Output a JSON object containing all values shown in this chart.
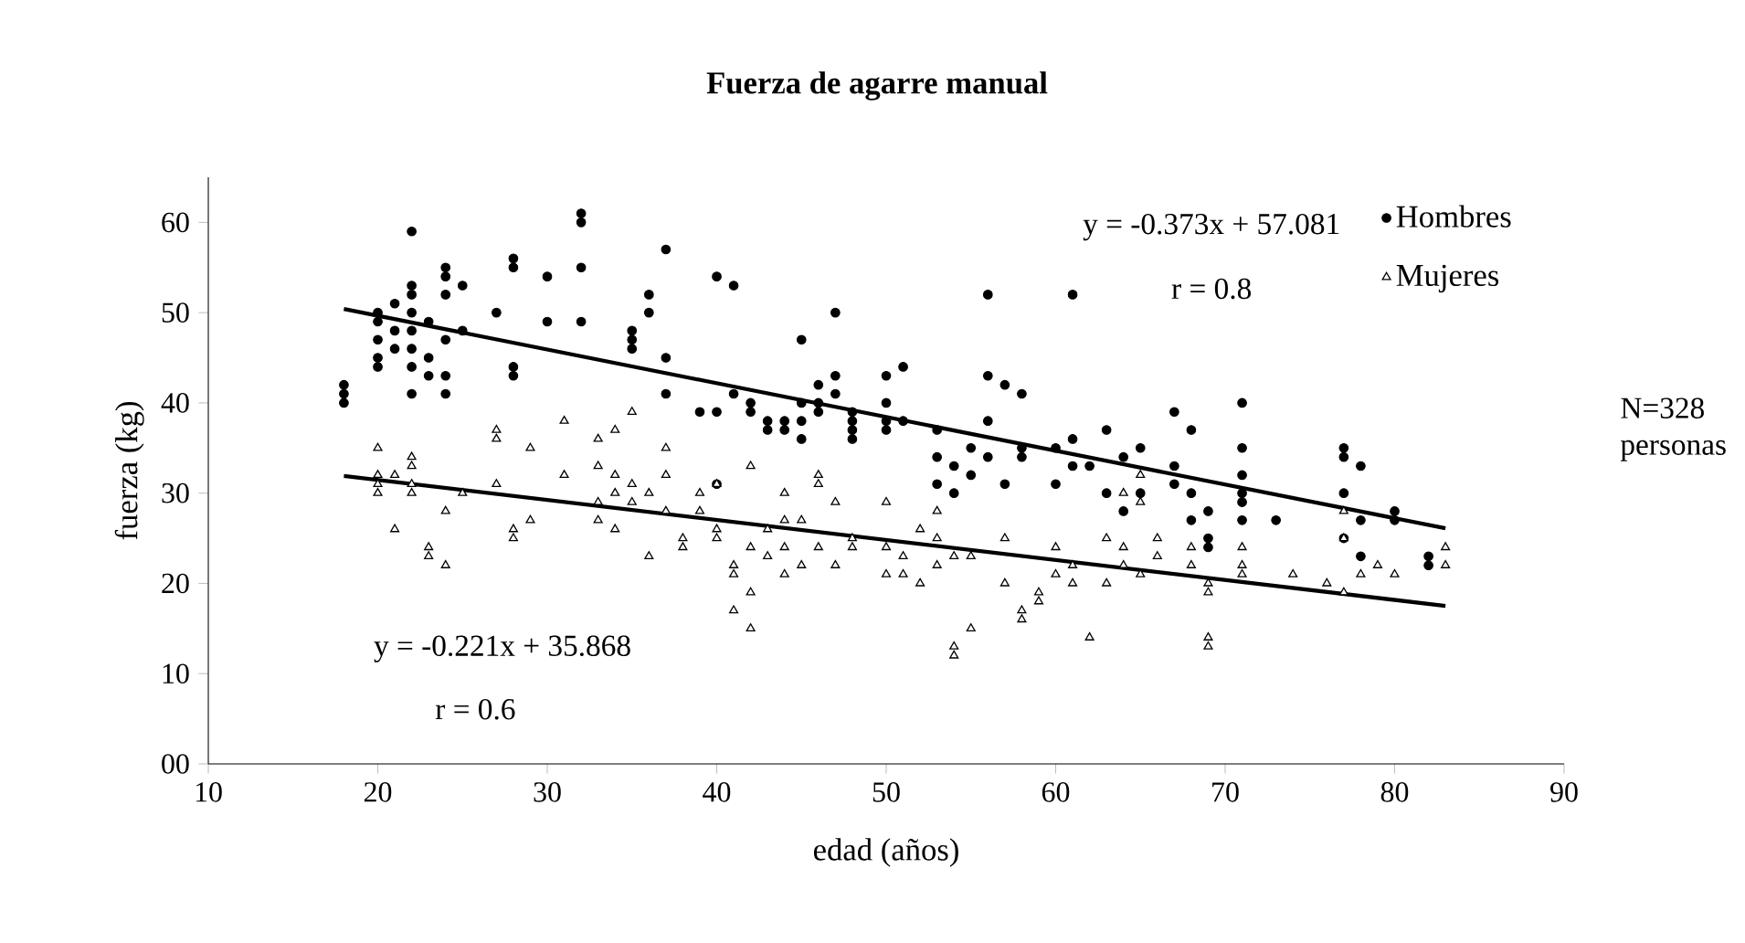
{
  "chart_data": {
    "type": "scatter",
    "title": "Fuerza de agarre manual",
    "xlabel": "edad (años)",
    "ylabel": "fuerza (kg)",
    "xlim": [
      10,
      90
    ],
    "ylim": [
      0,
      65
    ],
    "xticks": [
      10,
      20,
      30,
      40,
      50,
      60,
      70,
      80,
      90
    ],
    "yticks": [
      {
        "value": 0,
        "label": "00"
      },
      10,
      20,
      30,
      40,
      50,
      60
    ],
    "grid": false,
    "legend": "top right",
    "annotations": [
      "y = -0.373x + 57.081",
      "r = 0.8",
      "y = -0.221x + 35.868",
      "r = 0.6",
      "N=328 personas"
    ],
    "series": [
      {
        "name": "Hombres",
        "color": "#000000",
        "marker": "circle",
        "x": [
          18,
          18,
          18,
          20,
          20,
          20,
          20,
          20,
          21,
          21,
          21,
          22,
          22,
          22,
          22,
          22,
          22,
          22,
          22,
          23,
          23,
          23,
          24,
          24,
          24,
          24,
          24,
          24,
          25,
          25,
          27,
          28,
          28,
          28,
          28,
          30,
          30,
          32,
          32,
          32,
          32,
          35,
          35,
          35,
          36,
          36,
          37,
          37,
          37,
          39,
          40,
          40,
          40,
          41,
          41,
          42,
          42,
          43,
          43,
          44,
          44,
          45,
          45,
          45,
          45,
          46,
          46,
          46,
          47,
          47,
          47,
          48,
          48,
          48,
          48,
          50,
          50,
          50,
          50,
          51,
          51,
          53,
          53,
          53,
          54,
          54,
          55,
          55,
          56,
          56,
          56,
          56,
          57,
          57,
          58,
          58,
          58,
          60,
          60,
          61,
          61,
          61,
          62,
          63,
          63,
          64,
          64,
          65,
          65,
          67,
          67,
          67,
          68,
          68,
          68,
          69,
          69,
          69,
          71,
          71,
          71,
          71,
          71,
          71,
          73,
          77,
          77,
          77,
          77,
          78,
          78,
          78,
          80,
          80,
          82,
          82
        ],
        "values": [
          42,
          40,
          41,
          45,
          44,
          47,
          50,
          49,
          51,
          48,
          46,
          59,
          53,
          52,
          50,
          48,
          46,
          44,
          41,
          43,
          49,
          45,
          55,
          54,
          52,
          47,
          43,
          41,
          53,
          48,
          50,
          56,
          55,
          44,
          43,
          54,
          49,
          61,
          60,
          55,
          49,
          48,
          46,
          47,
          52,
          50,
          57,
          45,
          41,
          39,
          54,
          39,
          31,
          53,
          41,
          40,
          39,
          37,
          38,
          38,
          37,
          47,
          38,
          36,
          40,
          42,
          40,
          39,
          50,
          43,
          41,
          39,
          37,
          38,
          36,
          43,
          40,
          38,
          37,
          44,
          38,
          37,
          34,
          31,
          30,
          33,
          35,
          32,
          52,
          43,
          38,
          34,
          42,
          31,
          41,
          35,
          34,
          35,
          31,
          52,
          36,
          33,
          33,
          37,
          30,
          34,
          28,
          35,
          30,
          39,
          33,
          31,
          37,
          30,
          27,
          28,
          25,
          24,
          40,
          35,
          32,
          30,
          29,
          27,
          27,
          35,
          34,
          30,
          25,
          33,
          27,
          23,
          27,
          28,
          23,
          22
        ]
      },
      {
        "name": "Mujeres",
        "color": "#000000",
        "marker": "triangle",
        "x": [
          20,
          20,
          20,
          20,
          21,
          21,
          22,
          22,
          22,
          22,
          23,
          23,
          24,
          24,
          25,
          27,
          27,
          27,
          28,
          28,
          29,
          29,
          31,
          31,
          33,
          33,
          33,
          33,
          34,
          34,
          34,
          34,
          35,
          35,
          35,
          36,
          36,
          37,
          37,
          37,
          38,
          38,
          39,
          39,
          40,
          40,
          40,
          41,
          41,
          41,
          42,
          42,
          42,
          42,
          43,
          43,
          44,
          44,
          44,
          44,
          45,
          45,
          46,
          46,
          46,
          47,
          47,
          48,
          48,
          50,
          50,
          50,
          51,
          51,
          52,
          52,
          53,
          53,
          53,
          54,
          54,
          54,
          55,
          55,
          57,
          57,
          58,
          58,
          59,
          59,
          60,
          60,
          61,
          61,
          62,
          63,
          63,
          64,
          64,
          64,
          65,
          65,
          65,
          66,
          66,
          68,
          68,
          69,
          69,
          69,
          69,
          71,
          71,
          71,
          74,
          76,
          77,
          77,
          77,
          78,
          79,
          80,
          83,
          83
        ],
        "values": [
          35,
          32,
          31,
          30,
          26,
          32,
          34,
          33,
          31,
          30,
          24,
          23,
          28,
          22,
          30,
          37,
          36,
          31,
          26,
          25,
          35,
          27,
          38,
          32,
          36,
          33,
          29,
          27,
          37,
          32,
          30,
          26,
          39,
          31,
          29,
          30,
          23,
          35,
          32,
          28,
          25,
          24,
          30,
          28,
          26,
          25,
          31,
          22,
          21,
          17,
          33,
          24,
          19,
          15,
          26,
          23,
          27,
          30,
          24,
          21,
          27,
          22,
          32,
          31,
          24,
          29,
          22,
          25,
          24,
          29,
          24,
          21,
          21,
          23,
          26,
          20,
          28,
          25,
          22,
          23,
          13,
          12,
          23,
          15,
          25,
          20,
          17,
          16,
          18,
          19,
          24,
          21,
          22,
          20,
          14,
          25,
          20,
          24,
          30,
          22,
          32,
          29,
          21,
          25,
          23,
          24,
          22,
          19,
          20,
          13,
          14,
          24,
          22,
          21,
          21,
          20,
          28,
          25,
          19,
          21,
          22,
          21,
          22,
          24
        ]
      },
      {
        "type": "line",
        "color": "#000000",
        "x": [
          18,
          83
        ],
        "values": [
          50.4,
          26.1
        ]
      },
      {
        "type": "line",
        "color": "#000000",
        "x": [
          18,
          83
        ],
        "values": [
          31.9,
          17.5
        ]
      }
    ]
  }
}
